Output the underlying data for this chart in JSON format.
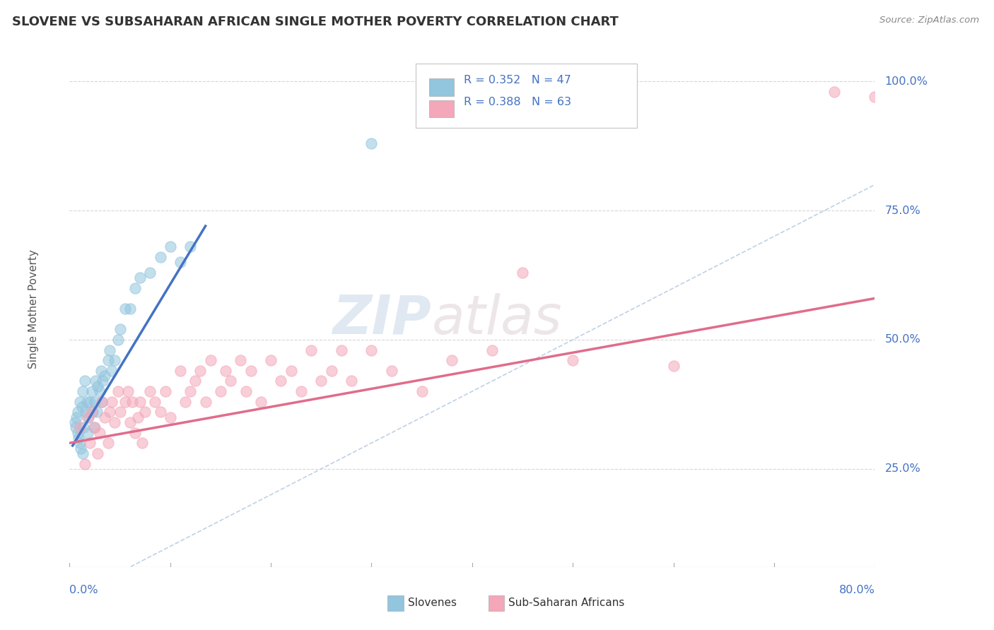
{
  "title": "SLOVENE VS SUBSAHARAN AFRICAN SINGLE MOTHER POVERTY CORRELATION CHART",
  "source": "Source: ZipAtlas.com",
  "ylabel": "Single Mother Poverty",
  "slovene_color": "#92C5DE",
  "subsaharan_color": "#F4A7B9",
  "slovene_line_color": "#4472C4",
  "subsaharan_line_color": "#E06C8C",
  "diagonal_color": "#B8CCE4",
  "watermark_zip": "ZIP",
  "watermark_atlas": "atlas",
  "xlim": [
    0.0,
    0.8
  ],
  "ylim": [
    0.06,
    1.06
  ],
  "slovene_x": [
    0.005,
    0.006,
    0.007,
    0.008,
    0.008,
    0.009,
    0.01,
    0.01,
    0.011,
    0.012,
    0.013,
    0.013,
    0.014,
    0.015,
    0.016,
    0.017,
    0.018,
    0.019,
    0.02,
    0.022,
    0.023,
    0.024,
    0.025,
    0.026,
    0.027,
    0.028,
    0.03,
    0.031,
    0.032,
    0.033,
    0.035,
    0.038,
    0.04,
    0.042,
    0.045,
    0.048,
    0.05,
    0.055,
    0.06,
    0.065,
    0.07,
    0.08,
    0.09,
    0.1,
    0.11,
    0.12,
    0.3
  ],
  "slovene_y": [
    0.34,
    0.33,
    0.35,
    0.32,
    0.36,
    0.31,
    0.3,
    0.38,
    0.29,
    0.37,
    0.28,
    0.4,
    0.33,
    0.42,
    0.36,
    0.38,
    0.32,
    0.35,
    0.38,
    0.4,
    0.36,
    0.33,
    0.38,
    0.42,
    0.36,
    0.41,
    0.4,
    0.44,
    0.38,
    0.42,
    0.43,
    0.46,
    0.48,
    0.44,
    0.46,
    0.5,
    0.52,
    0.56,
    0.56,
    0.6,
    0.62,
    0.63,
    0.66,
    0.68,
    0.65,
    0.68,
    0.88
  ],
  "subsaharan_x": [
    0.01,
    0.015,
    0.018,
    0.02,
    0.022,
    0.025,
    0.028,
    0.03,
    0.032,
    0.035,
    0.038,
    0.04,
    0.042,
    0.045,
    0.048,
    0.05,
    0.055,
    0.058,
    0.06,
    0.062,
    0.065,
    0.068,
    0.07,
    0.072,
    0.075,
    0.08,
    0.085,
    0.09,
    0.095,
    0.1,
    0.11,
    0.115,
    0.12,
    0.125,
    0.13,
    0.135,
    0.14,
    0.15,
    0.155,
    0.16,
    0.17,
    0.175,
    0.18,
    0.19,
    0.2,
    0.21,
    0.22,
    0.23,
    0.24,
    0.25,
    0.26,
    0.27,
    0.28,
    0.3,
    0.32,
    0.35,
    0.38,
    0.42,
    0.45,
    0.5,
    0.6,
    0.76,
    0.8
  ],
  "subsaharan_y": [
    0.33,
    0.26,
    0.35,
    0.3,
    0.36,
    0.33,
    0.28,
    0.32,
    0.38,
    0.35,
    0.3,
    0.36,
    0.38,
    0.34,
    0.4,
    0.36,
    0.38,
    0.4,
    0.34,
    0.38,
    0.32,
    0.35,
    0.38,
    0.3,
    0.36,
    0.4,
    0.38,
    0.36,
    0.4,
    0.35,
    0.44,
    0.38,
    0.4,
    0.42,
    0.44,
    0.38,
    0.46,
    0.4,
    0.44,
    0.42,
    0.46,
    0.4,
    0.44,
    0.38,
    0.46,
    0.42,
    0.44,
    0.4,
    0.48,
    0.42,
    0.44,
    0.48,
    0.42,
    0.48,
    0.44,
    0.4,
    0.46,
    0.48,
    0.63,
    0.46,
    0.45,
    0.98,
    0.97
  ],
  "slovene_line_x": [
    0.003,
    0.135
  ],
  "slovene_line_y": [
    0.295,
    0.72
  ],
  "subsaharan_line_x": [
    0.0,
    0.8
  ],
  "subsaharan_line_y": [
    0.3,
    0.58
  ],
  "ytick_vals": [
    0.25,
    0.5,
    0.75,
    1.0
  ],
  "ytick_labels": [
    "25.0%",
    "50.0%",
    "75.0%",
    "100.0%"
  ]
}
